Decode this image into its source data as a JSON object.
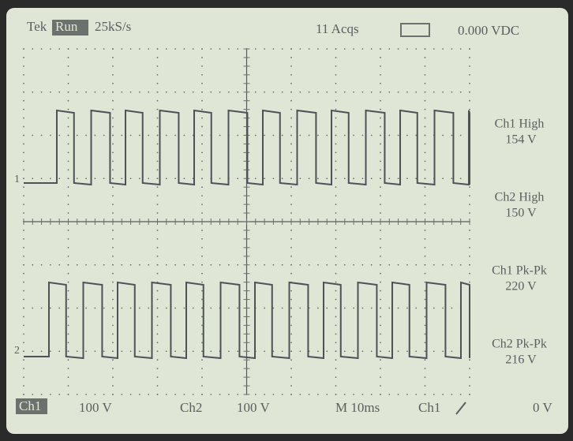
{
  "header": {
    "brand": "Tek",
    "state": "Run",
    "sample_rate": "25kS/s",
    "acquisitions": "11 Acqs",
    "trigger_level": "0.000 VDC"
  },
  "markers": {
    "ch1": "1",
    "ch2": "2"
  },
  "measurements": [
    {
      "label": "Ch1 High",
      "value": "154 V"
    },
    {
      "label": "Ch2 High",
      "value": "150 V"
    },
    {
      "label": "Ch1 Pk-Pk",
      "value": "220 V"
    },
    {
      "label": "Ch2 Pk-Pk",
      "value": "216 V"
    }
  ],
  "footer": {
    "ch1": "Ch1",
    "ch1_scale": "100 V",
    "ch2": "Ch2",
    "ch2_scale": "100 V",
    "timebase": "M 10ms",
    "trigger_source": "Ch1",
    "trigger_level": "0 V"
  }
}
